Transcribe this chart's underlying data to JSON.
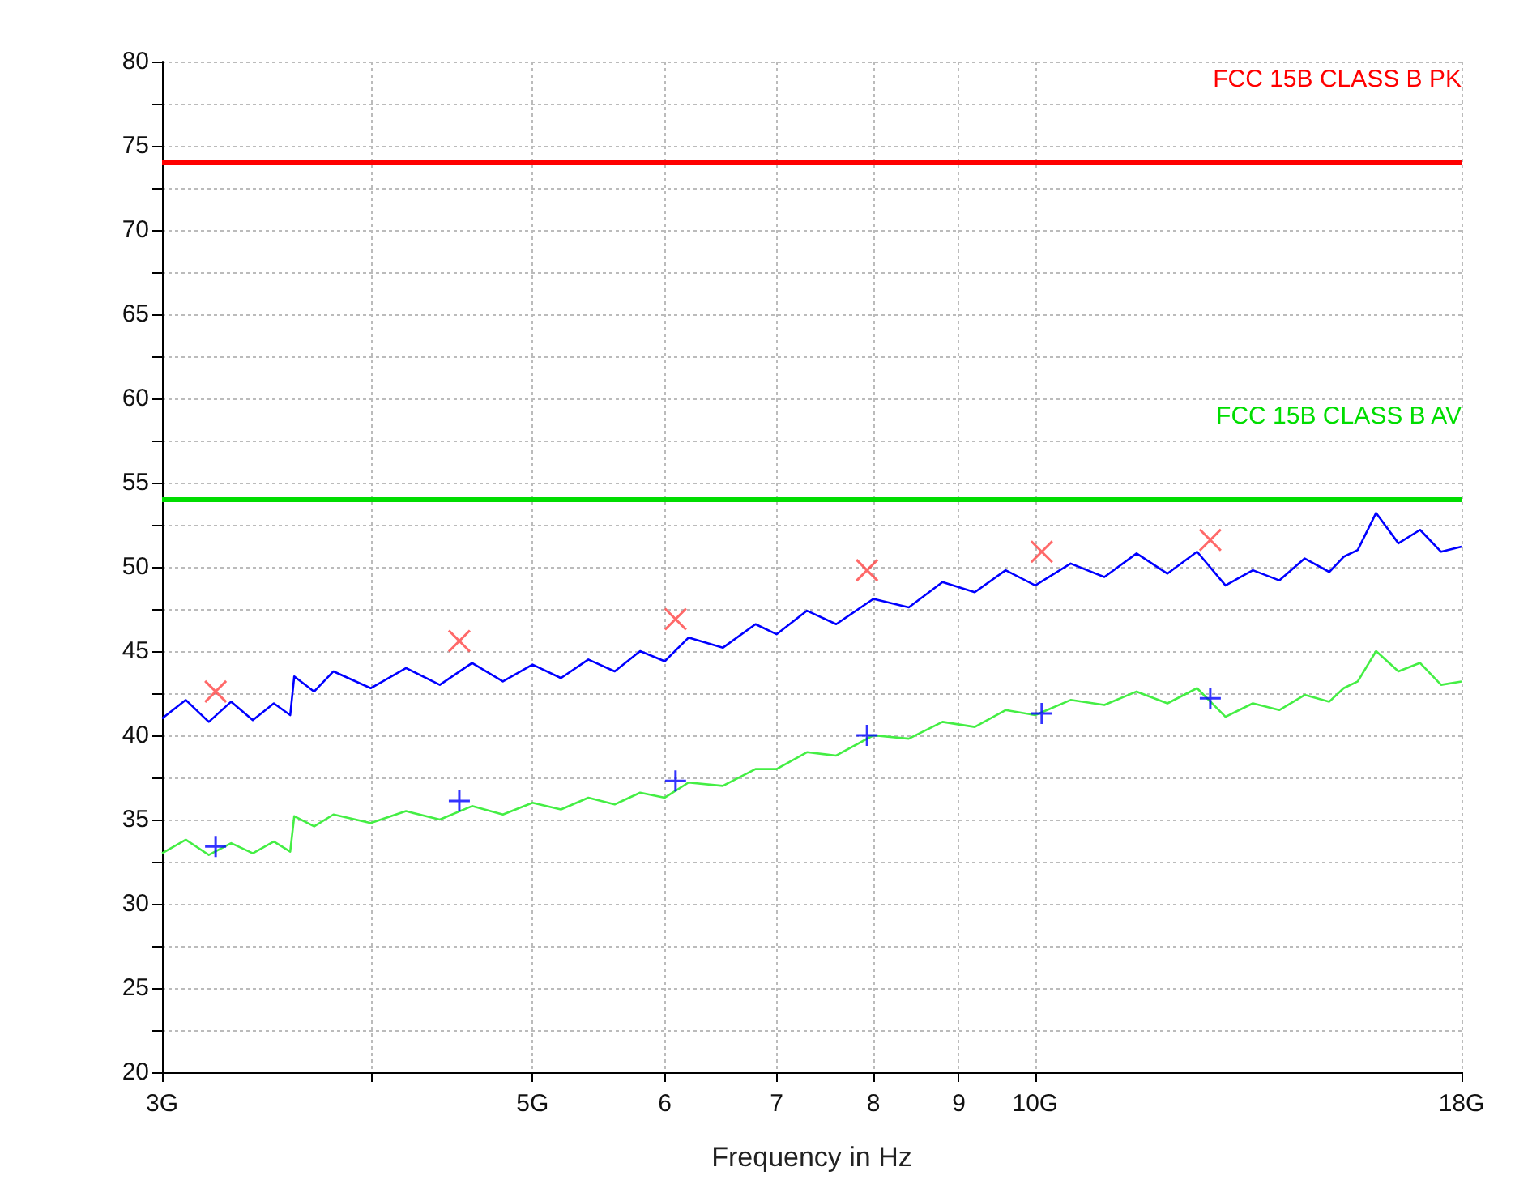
{
  "chart_data": {
    "type": "line",
    "xlabel": "Frequency in Hz",
    "log": "x",
    "grid": true,
    "xlim": [
      3,
      18
    ],
    "xticks": [
      {
        "value": 3,
        "label": "3G"
      },
      {
        "value": 4,
        "label": null
      },
      {
        "value": 5,
        "label": "5G"
      },
      6,
      7,
      8,
      9,
      {
        "value": 10,
        "label": "10G"
      },
      {
        "value": 18,
        "label": "18G"
      }
    ],
    "ylim": [
      20,
      80
    ],
    "yticks": [
      20,
      {
        "value": 22.5,
        "label": null
      },
      25,
      {
        "value": 27.5,
        "label": null
      },
      30,
      {
        "value": 32.5,
        "label": null
      },
      35,
      {
        "value": 37.5,
        "label": null
      },
      40,
      {
        "value": 42.5,
        "label": null
      },
      45,
      {
        "value": 47.5,
        "label": null
      },
      50,
      {
        "value": 52.5,
        "label": null
      },
      55,
      {
        "value": 57.5,
        "label": null
      },
      60,
      {
        "value": 62.5,
        "label": null
      },
      65,
      {
        "value": 67.5,
        "label": null
      },
      70,
      {
        "value": 72.5,
        "label": null
      },
      75,
      {
        "value": 77.5,
        "label": null
      },
      80
    ],
    "x": [
      3.0,
      3.1,
      3.2,
      3.3,
      3.4,
      3.5,
      3.58,
      3.6,
      3.7,
      3.8,
      4.0,
      4.2,
      4.4,
      4.6,
      4.8,
      5.0,
      5.2,
      5.4,
      5.6,
      5.8,
      6.0,
      6.2,
      6.5,
      6.8,
      7.0,
      7.3,
      7.6,
      8.0,
      8.4,
      8.8,
      9.2,
      9.6,
      10.0,
      10.5,
      11.0,
      11.5,
      12.0,
      12.5,
      13.0,
      13.5,
      14.0,
      14.5,
      15.0,
      15.3,
      15.6,
      16.0,
      16.5,
      17.0,
      17.5,
      18.0
    ],
    "series": [
      {
        "color": "#0000ff",
        "marker": "none",
        "values": [
          41.0,
          42.1,
          40.8,
          42.0,
          40.9,
          41.9,
          41.2,
          43.5,
          42.6,
          43.8,
          42.8,
          44.0,
          43.0,
          44.3,
          43.2,
          44.2,
          43.4,
          44.5,
          43.8,
          45.0,
          44.4,
          45.8,
          45.2,
          46.6,
          46.0,
          47.4,
          46.6,
          48.1,
          47.6,
          49.1,
          48.5,
          49.8,
          48.9,
          50.2,
          49.4,
          50.8,
          49.6,
          50.9,
          48.9,
          49.8,
          49.2,
          50.5,
          49.7,
          50.6,
          51.0,
          53.2,
          51.4,
          52.2,
          50.9,
          51.2
        ]
      },
      {
        "color": "#44ee44",
        "marker": "none",
        "values": [
          33.0,
          33.8,
          32.9,
          33.6,
          33.0,
          33.7,
          33.1,
          35.2,
          34.6,
          35.3,
          34.8,
          35.5,
          35.0,
          35.8,
          35.3,
          36.0,
          35.6,
          36.3,
          35.9,
          36.6,
          36.3,
          37.2,
          37.0,
          38.0,
          38.0,
          39.0,
          38.8,
          40.0,
          39.8,
          40.8,
          40.5,
          41.5,
          41.2,
          42.1,
          41.8,
          42.6,
          41.9,
          42.8,
          41.1,
          41.9,
          41.5,
          42.4,
          42.0,
          42.8,
          43.2,
          45.0,
          43.8,
          44.3,
          43.0,
          43.2
        ]
      },
      {
        "type": "scatter",
        "color": "#ff4444",
        "marker": "x",
        "x": [
          3.23,
          4.52,
          6.09,
          7.93,
          10.09,
          12.73
        ],
        "values": [
          42.6,
          45.6,
          46.9,
          49.8,
          50.9,
          51.6
        ]
      },
      {
        "type": "scatter",
        "color": "#0000ff",
        "marker": "cross",
        "x": [
          3.23,
          4.52,
          6.09,
          7.93,
          10.09,
          12.73
        ],
        "values": [
          33.4,
          36.1,
          37.3,
          40.0,
          41.3,
          42.2
        ]
      }
    ],
    "ref_lines": [
      {
        "axis": "y",
        "value": 74,
        "label": "FCC 15B CLASS B PK",
        "color": "#ff0000"
      },
      {
        "axis": "y",
        "value": 54,
        "label": "FCC 15B CLASS B AV",
        "color": "#00dd00"
      }
    ]
  }
}
